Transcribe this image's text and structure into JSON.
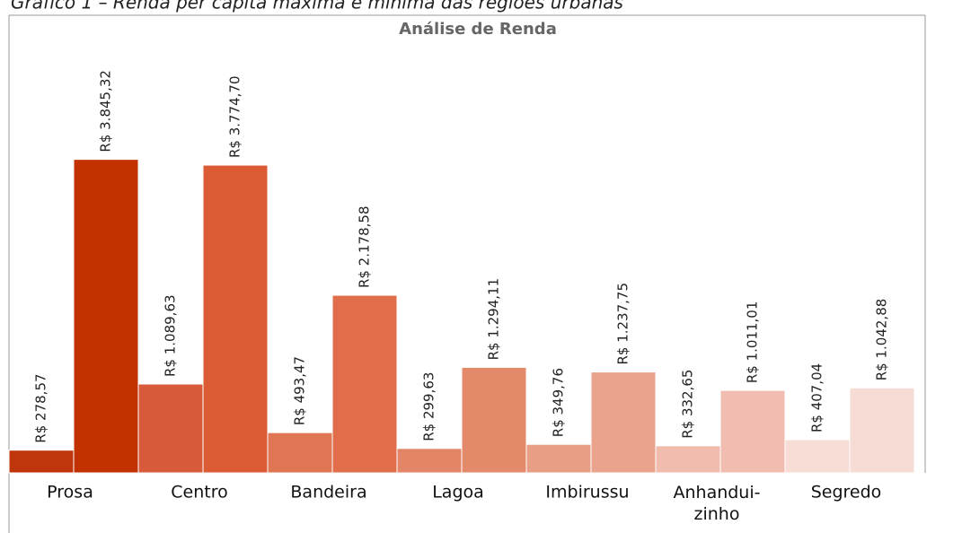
{
  "chart_data": {
    "type": "bar",
    "caption": "Gráfico 1 – Renda per capita máxima e mínima das regiões urbanas",
    "title": "Análise de Renda",
    "categories": [
      "Prosa",
      "Centro",
      "Bandeira",
      "Lagoa",
      "Imbirussu",
      "Anhandui-\nzinho",
      "Segredo"
    ],
    "series": [
      {
        "colors": [
          "#c0360c",
          "#d75b3a",
          "#e07553",
          "#e38667",
          "#e89e85",
          "#f0bcae",
          "#f7ddd5"
        ],
        "values": [
          278.57,
          1089.63,
          493.47,
          299.63,
          349.76,
          332.65,
          407.04
        ],
        "value_labels": [
          "R$ 278,57",
          "R$ 1.089,63",
          "R$ 493,47",
          "R$ 299,63",
          "R$ 349,76",
          "R$ 332,65",
          "R$ 407,04"
        ]
      },
      {
        "colors": [
          "#c23100",
          "#db5b35",
          "#e06e4b",
          "#e38a6b",
          "#eaa38c",
          "#f0bdb0",
          "#f6dcd4"
        ],
        "values": [
          3845.32,
          3774.7,
          2178.58,
          1294.11,
          1237.75,
          1011.01,
          1042.88
        ],
        "value_labels": [
          "R$ 3.845,32",
          "R$ 3.774,70",
          "R$ 2.178,58",
          "R$ 1.294,11",
          "R$ 1.237,75",
          "R$ 1.011,01",
          "R$ 1.042,88"
        ]
      }
    ],
    "ylim": [
      0,
      5800
    ]
  }
}
